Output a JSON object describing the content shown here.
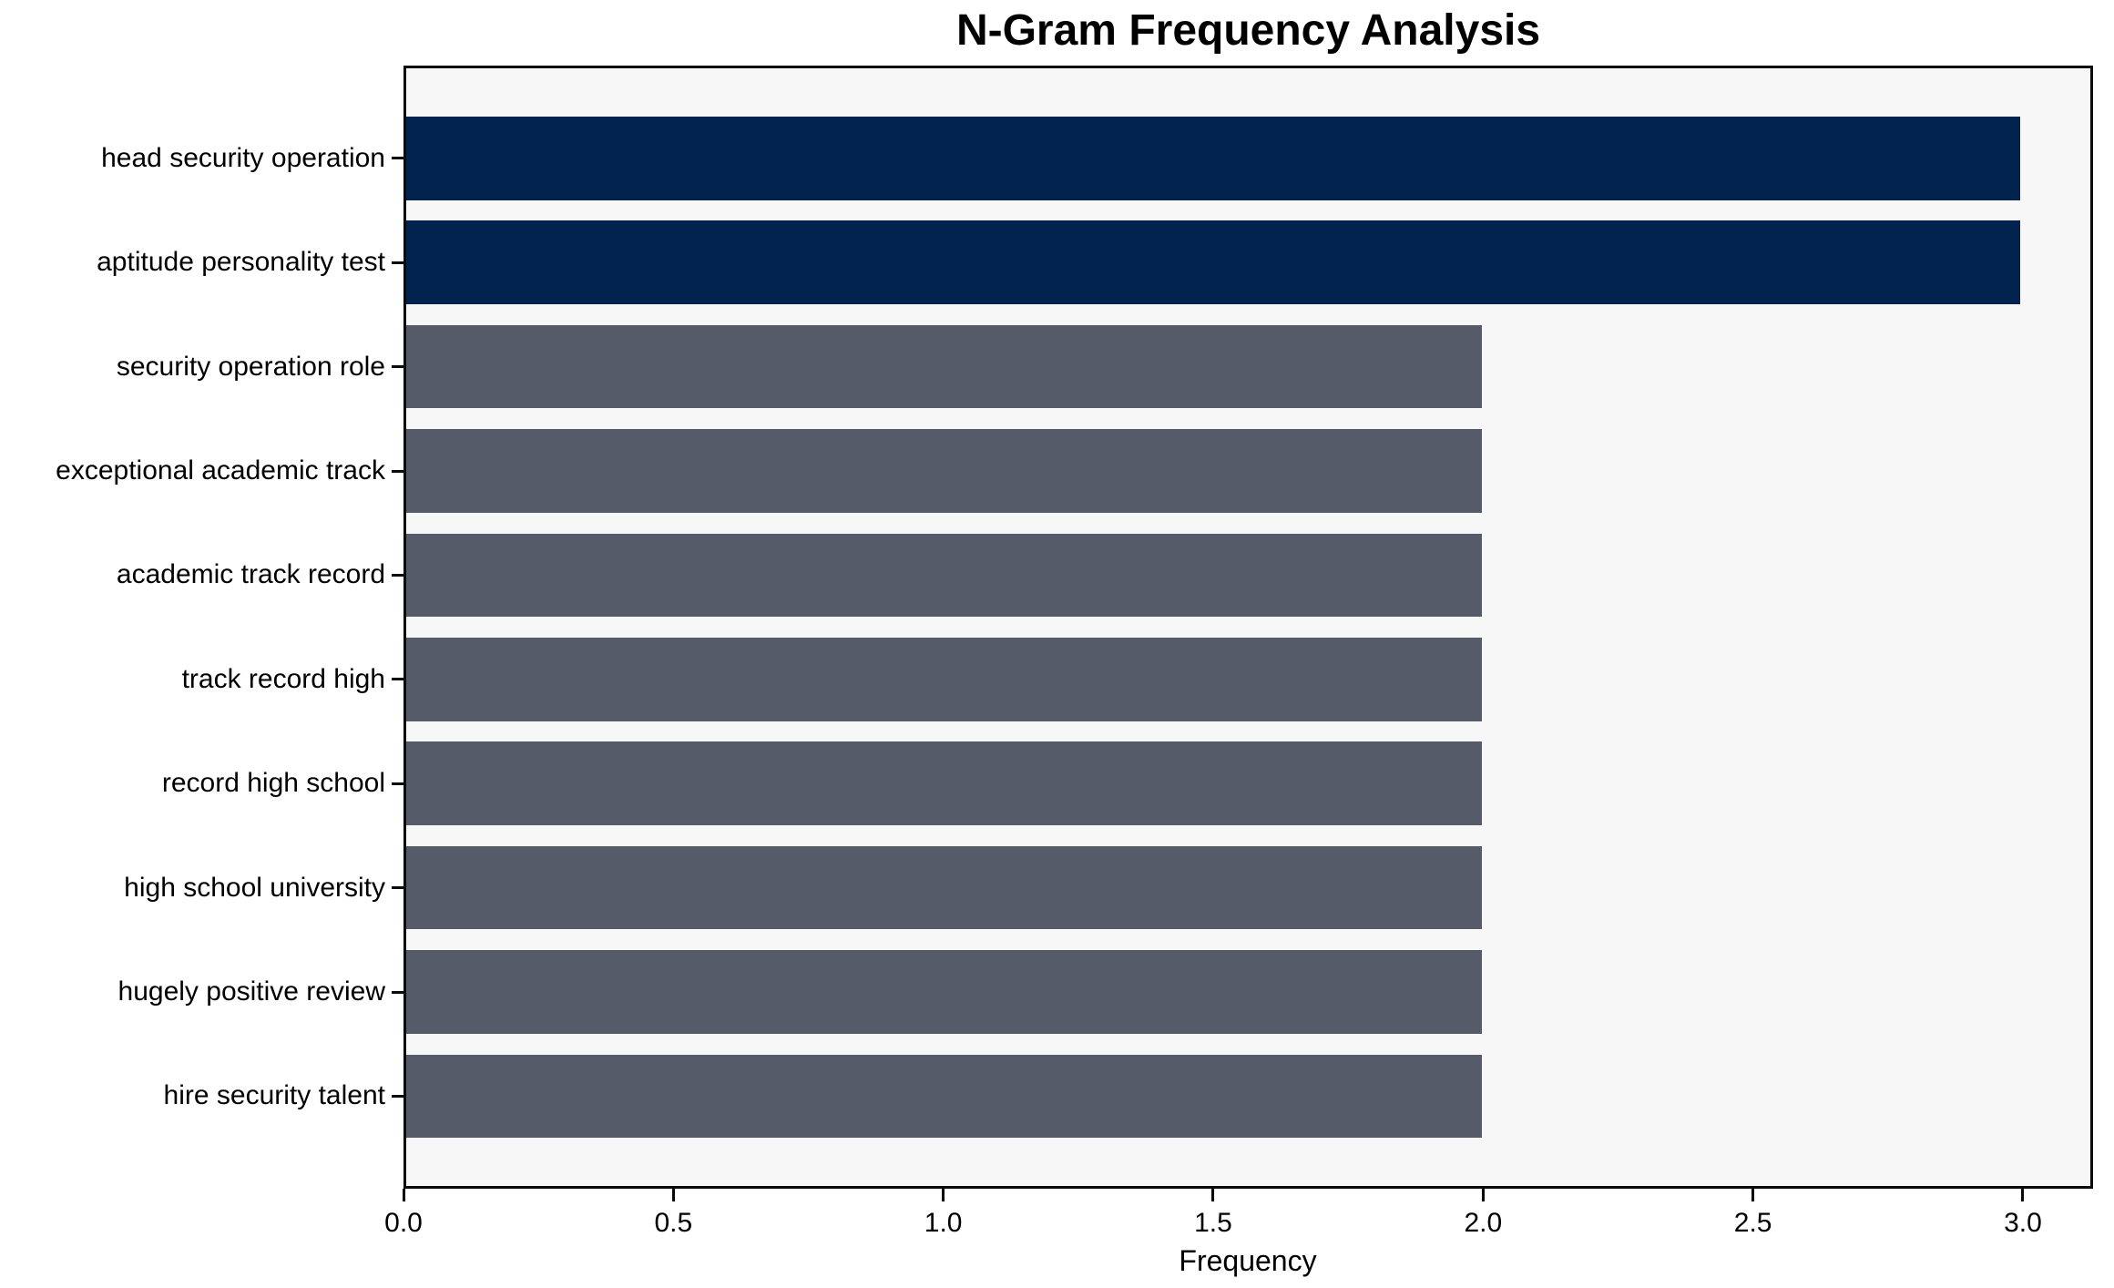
{
  "chart_data": {
    "type": "bar",
    "orientation": "horizontal",
    "title": "N-Gram Frequency Analysis",
    "xlabel": "Frequency",
    "ylabel": "",
    "categories": [
      "head security operation",
      "aptitude personality test",
      "security operation role",
      "exceptional academic track",
      "academic track record",
      "track record high",
      "record high school",
      "high school university",
      "hugely positive review",
      "hire security talent"
    ],
    "values": [
      3,
      3,
      2,
      2,
      2,
      2,
      2,
      2,
      2,
      2
    ],
    "bar_colors": [
      "#02234d",
      "#02234d",
      "#565b69",
      "#565b69",
      "#565b69",
      "#565b69",
      "#565b69",
      "#565b69",
      "#565b69",
      "#565b69"
    ],
    "xlim": [
      0,
      3.13
    ],
    "xticks": [
      0,
      0.5,
      1,
      1.5,
      2,
      2.5,
      3
    ],
    "xtick_labels": [
      "0.0",
      "0.5",
      "1.0",
      "1.5",
      "2.0",
      "2.5",
      "3.0"
    ],
    "grid": false,
    "legend": false,
    "colors": {
      "bar_highlight": "#02234d",
      "bar_default": "#565b69",
      "plot_background": "#f7f7f8",
      "figure_background": "#ffffff",
      "axis": "#0a0a0a",
      "text": "#000000"
    }
  }
}
